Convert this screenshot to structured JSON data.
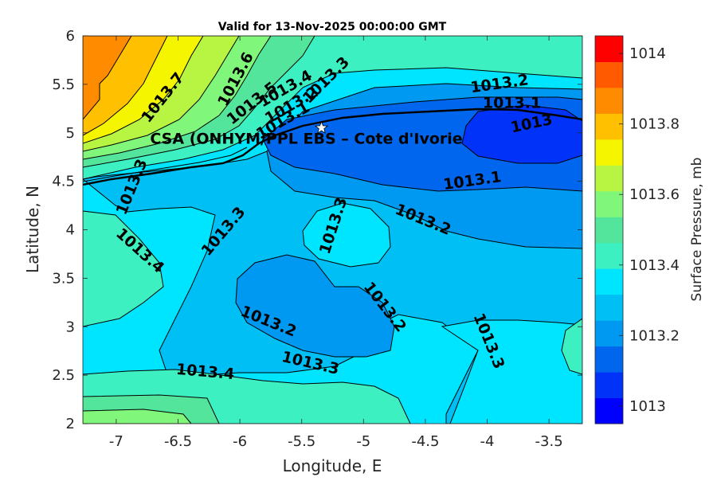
{
  "chart_data": {
    "type": "contour",
    "title": "Valid for 13-Nov-2025 00:00:00 GMT",
    "xlabel": "Longitude, E",
    "ylabel": "Latitude, N",
    "xlim": [
      -7.27,
      -3.23
    ],
    "ylim": [
      2,
      6
    ],
    "xticks": [
      "-7",
      "-6.5",
      "-6",
      "-5.5",
      "-5",
      "-4.5",
      "-4",
      "-3.5"
    ],
    "xtick_values": [
      -7,
      -6.5,
      -6,
      -5.5,
      -5,
      -4.5,
      -4,
      -3.5
    ],
    "yticks": [
      "2",
      "2.5",
      "3",
      "3.5",
      "4",
      "4.5",
      "5",
      "5.5",
      "6"
    ],
    "ytick_values": [
      2,
      2.5,
      3,
      3.5,
      4,
      4.5,
      5,
      5.5,
      6
    ],
    "grid": false,
    "colorbar": {
      "label": "Surface Pressure, mb",
      "range": [
        1012.95,
        1014.05
      ],
      "step": 0.05,
      "tick_labels": [
        "1013",
        "1013.2",
        "1013.4",
        "1013.6",
        "1013.8",
        "1014"
      ],
      "tick_values": [
        1013.0,
        1013.2,
        1013.4,
        1013.6,
        1013.8,
        1014.0
      ],
      "colors": [
        "#0000ff",
        "#0033f7",
        "#0066ee",
        "#0099f2",
        "#00bff5",
        "#00e5ff",
        "#3df0c2",
        "#52e59b",
        "#80f77a",
        "#b8f542",
        "#f5f500",
        "#ffc000",
        "#ff8c00",
        "#ff5a00",
        "#ff0000"
      ]
    },
    "site": {
      "label": "CSA (ONHYM/PPL EBS  – Cote d'Ivorie",
      "lon": -5.34,
      "lat": 5.05,
      "marker": "star"
    },
    "contour_labels": [
      {
        "text": "1013.7",
        "lon": -6.62,
        "lat": 5.36,
        "angle": -52
      },
      {
        "text": "1013.6",
        "lon": -6.03,
        "lat": 5.55,
        "angle": -62
      },
      {
        "text": "1013.5",
        "lon": -5.9,
        "lat": 5.3,
        "angle": -38
      },
      {
        "text": "1013.4",
        "lon": -5.63,
        "lat": 5.45,
        "angle": -30
      },
      {
        "text": "1013.3",
        "lon": -5.3,
        "lat": 5.54,
        "angle": -45
      },
      {
        "text": "1013.2",
        "lon": -5.58,
        "lat": 5.28,
        "angle": -30
      },
      {
        "text": "1013.1",
        "lon": -5.65,
        "lat": 5.12,
        "angle": -30
      },
      {
        "text": "1013.2",
        "lon": -3.9,
        "lat": 5.5,
        "angle": -8
      },
      {
        "text": "1013.1",
        "lon": -3.8,
        "lat": 5.3,
        "angle": 0
      },
      {
        "text": "1013",
        "lon": -3.64,
        "lat": 5.09,
        "angle": -12
      },
      {
        "text": "1013.3",
        "lon": -6.87,
        "lat": 4.44,
        "angle": -68
      },
      {
        "text": "1013.1",
        "lon": -4.12,
        "lat": 4.5,
        "angle": -8
      },
      {
        "text": "1013.3",
        "lon": -5.24,
        "lat": 4.04,
        "angle": -72
      },
      {
        "text": "1013.3",
        "lon": -6.13,
        "lat": 3.98,
        "angle": -50
      },
      {
        "text": "1013.2",
        "lon": -4.52,
        "lat": 4.1,
        "angle": 22
      },
      {
        "text": "1013.4",
        "lon": -6.81,
        "lat": 3.78,
        "angle": 42
      },
      {
        "text": "1013.2",
        "lon": -4.83,
        "lat": 3.2,
        "angle": 52
      },
      {
        "text": "1013.2",
        "lon": -5.77,
        "lat": 3.05,
        "angle": 22
      },
      {
        "text": "1013.3",
        "lon": -5.43,
        "lat": 2.62,
        "angle": 13
      },
      {
        "text": "1013.4",
        "lon": -6.28,
        "lat": 2.53,
        "angle": 5
      },
      {
        "text": "1013.3",
        "lon": -3.99,
        "lat": 2.85,
        "angle": 68
      }
    ]
  }
}
